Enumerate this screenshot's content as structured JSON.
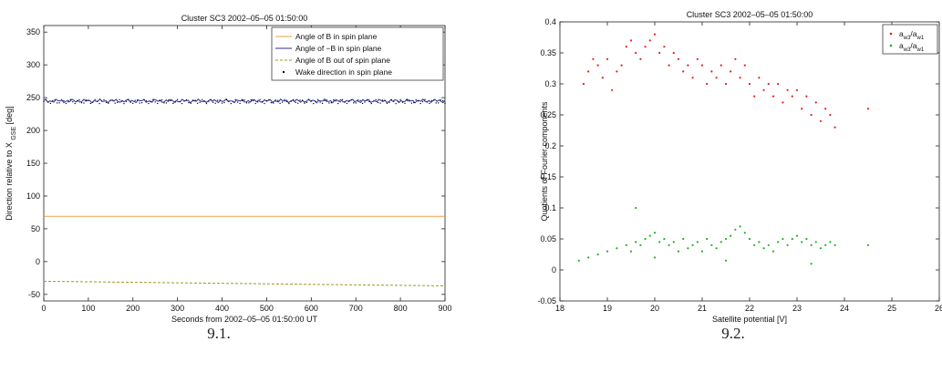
{
  "captions": {
    "left": "9.1.",
    "right": "9.2."
  },
  "chart_data": [
    {
      "type": "line",
      "title": "Cluster SC3 2002–05–05 01:50:00",
      "xlabel": "Seconds from 2002–05–05 01:50:00 UT",
      "ylabel": "Direction relative to X",
      "ylabel_sub": "GSE",
      "ylabel_unit": "[deg]",
      "xlim": [
        0,
        900
      ],
      "ylim": [
        -60,
        360
      ],
      "xticks": [
        0,
        100,
        200,
        300,
        400,
        500,
        600,
        700,
        800,
        900
      ],
      "yticks": [
        -50,
        0,
        50,
        100,
        150,
        200,
        250,
        300,
        350
      ],
      "grid": false,
      "legend_position": "top-right",
      "series": [
        {
          "name": "Angle of B in spin plane",
          "color": "#e8a040",
          "style": "solid",
          "x": [
            0,
            900
          ],
          "y": [
            69,
            69
          ]
        },
        {
          "name": "Angle of −B in spin plane",
          "color": "#2c2c9c",
          "style": "solid",
          "x": [
            0,
            900
          ],
          "y": [
            249,
            249
          ]
        },
        {
          "name": "Angle of B out of spin plane",
          "color": "#9a9a20",
          "style": "dashed",
          "x": [
            0,
            900
          ],
          "y": [
            -30,
            -37
          ]
        },
        {
          "name": "Wake direction in spin plane",
          "color": "#000000",
          "style": "markers",
          "x": [
            0,
            900
          ],
          "y": [
            244,
            244
          ],
          "noise": 3
        }
      ]
    },
    {
      "type": "scatter",
      "title": "Cluster SC3 2002–05–05 01:50:00",
      "xlabel": "Satellite potential [V]",
      "ylabel": "Quotients of Fourier components",
      "xlim": [
        18,
        26
      ],
      "ylim": [
        -0.05,
        0.4
      ],
      "xticks": [
        18,
        19,
        20,
        21,
        22,
        23,
        24,
        25,
        26
      ],
      "yticks": [
        -0.05,
        0,
        0.05,
        0.1,
        0.15,
        0.2,
        0.25,
        0.3,
        0.35,
        0.4
      ],
      "grid": false,
      "legend_position": "top-right",
      "series": [
        {
          "name": "a_w3/a_w1",
          "legend_main": "a",
          "legend_sub1": "w3",
          "legend_sep": "/a",
          "legend_sub2": "w1",
          "color": "#e02020",
          "points": [
            [
              18.5,
              0.3
            ],
            [
              18.6,
              0.32
            ],
            [
              18.7,
              0.34
            ],
            [
              18.8,
              0.33
            ],
            [
              18.9,
              0.31
            ],
            [
              19.0,
              0.34
            ],
            [
              19.1,
              0.29
            ],
            [
              19.2,
              0.32
            ],
            [
              19.3,
              0.33
            ],
            [
              19.4,
              0.36
            ],
            [
              19.5,
              0.37
            ],
            [
              19.6,
              0.35
            ],
            [
              19.7,
              0.34
            ],
            [
              19.8,
              0.36
            ],
            [
              19.9,
              0.37
            ],
            [
              20.0,
              0.38
            ],
            [
              20.1,
              0.35
            ],
            [
              20.2,
              0.36
            ],
            [
              20.3,
              0.33
            ],
            [
              20.4,
              0.35
            ],
            [
              20.5,
              0.34
            ],
            [
              20.6,
              0.32
            ],
            [
              20.7,
              0.33
            ],
            [
              20.8,
              0.31
            ],
            [
              20.9,
              0.34
            ],
            [
              21.0,
              0.33
            ],
            [
              21.1,
              0.3
            ],
            [
              21.2,
              0.32
            ],
            [
              21.3,
              0.31
            ],
            [
              21.4,
              0.33
            ],
            [
              21.5,
              0.3
            ],
            [
              21.6,
              0.32
            ],
            [
              21.7,
              0.34
            ],
            [
              21.8,
              0.31
            ],
            [
              21.9,
              0.33
            ],
            [
              22.0,
              0.3
            ],
            [
              22.1,
              0.28
            ],
            [
              22.2,
              0.31
            ],
            [
              22.3,
              0.29
            ],
            [
              22.4,
              0.3
            ],
            [
              22.5,
              0.28
            ],
            [
              22.6,
              0.3
            ],
            [
              22.7,
              0.27
            ],
            [
              22.8,
              0.29
            ],
            [
              22.9,
              0.28
            ],
            [
              23.0,
              0.29
            ],
            [
              23.1,
              0.26
            ],
            [
              23.2,
              0.28
            ],
            [
              23.3,
              0.25
            ],
            [
              23.4,
              0.27
            ],
            [
              23.5,
              0.24
            ],
            [
              23.6,
              0.26
            ],
            [
              23.7,
              0.25
            ],
            [
              23.8,
              0.23
            ],
            [
              24.5,
              0.26
            ]
          ]
        },
        {
          "name": "a_w3/a_w1",
          "legend_main": "a",
          "legend_sub1": "w3",
          "legend_sep": "/a",
          "legend_sub2": "w1",
          "color": "#20b020",
          "points": [
            [
              18.4,
              0.015
            ],
            [
              18.6,
              0.02
            ],
            [
              18.8,
              0.025
            ],
            [
              19.0,
              0.03
            ],
            [
              19.2,
              0.035
            ],
            [
              19.4,
              0.04
            ],
            [
              19.5,
              0.03
            ],
            [
              19.6,
              0.045
            ],
            [
              19.7,
              0.04
            ],
            [
              19.8,
              0.05
            ],
            [
              19.9,
              0.055
            ],
            [
              20.0,
              0.06
            ],
            [
              20.1,
              0.045
            ],
            [
              20.2,
              0.05
            ],
            [
              20.3,
              0.04
            ],
            [
              20.4,
              0.045
            ],
            [
              20.5,
              0.03
            ],
            [
              20.6,
              0.05
            ],
            [
              20.7,
              0.035
            ],
            [
              20.8,
              0.04
            ],
            [
              20.9,
              0.045
            ],
            [
              21.0,
              0.03
            ],
            [
              21.1,
              0.05
            ],
            [
              21.2,
              0.04
            ],
            [
              21.3,
              0.035
            ],
            [
              21.4,
              0.045
            ],
            [
              21.5,
              0.05
            ],
            [
              21.6,
              0.055
            ],
            [
              21.7,
              0.065
            ],
            [
              21.8,
              0.07
            ],
            [
              21.9,
              0.06
            ],
            [
              22.0,
              0.05
            ],
            [
              22.1,
              0.04
            ],
            [
              22.2,
              0.045
            ],
            [
              22.3,
              0.035
            ],
            [
              22.4,
              0.04
            ],
            [
              22.5,
              0.03
            ],
            [
              22.6,
              0.045
            ],
            [
              22.7,
              0.05
            ],
            [
              22.8,
              0.04
            ],
            [
              22.9,
              0.05
            ],
            [
              23.0,
              0.055
            ],
            [
              23.1,
              0.045
            ],
            [
              23.2,
              0.05
            ],
            [
              23.3,
              0.04
            ],
            [
              23.4,
              0.045
            ],
            [
              23.5,
              0.035
            ],
            [
              23.6,
              0.04
            ],
            [
              23.7,
              0.045
            ],
            [
              23.8,
              0.04
            ],
            [
              19.6,
              0.1
            ],
            [
              20.0,
              0.02
            ],
            [
              21.5,
              0.015
            ],
            [
              23.3,
              0.01
            ],
            [
              24.5,
              0.04
            ]
          ]
        }
      ]
    }
  ]
}
